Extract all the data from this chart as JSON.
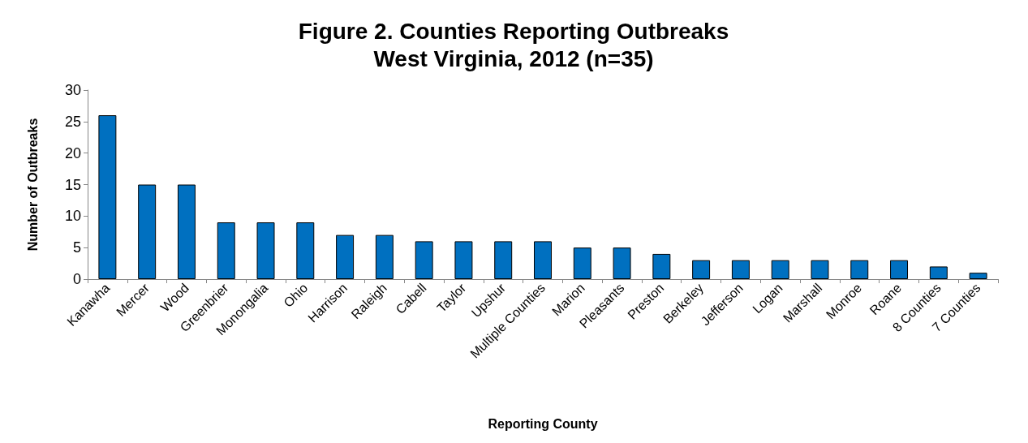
{
  "chart_data": {
    "type": "bar",
    "title": "Figure 2. Counties Reporting Outbreaks\nWest Virginia, 2012 (n=35)",
    "xlabel": "Reporting County",
    "ylabel": "Number of Outbreaks",
    "categories": [
      "Kanawha",
      "Mercer",
      "Wood",
      "Greenbrier",
      "Monongalia",
      "Ohio",
      "Harrison",
      "Raleigh",
      "Cabell",
      "Taylor",
      "Upshur",
      "Multiple Counties",
      "Marion",
      "Pleasants",
      "Preston",
      "Berkeley",
      "Jefferson",
      "Logan",
      "Marshall",
      "Monroe",
      "Roane",
      "8 Counties",
      "7 Counties"
    ],
    "values": [
      26,
      15,
      15,
      9,
      9,
      9,
      7,
      7,
      6,
      6,
      6,
      6,
      5,
      5,
      4,
      3,
      3,
      3,
      3,
      3,
      3,
      2,
      1
    ],
    "color": "#0070c0",
    "ylim": [
      0,
      30
    ],
    "yticks": [
      0,
      5,
      10,
      15,
      20,
      25,
      30
    ],
    "grid": false
  }
}
